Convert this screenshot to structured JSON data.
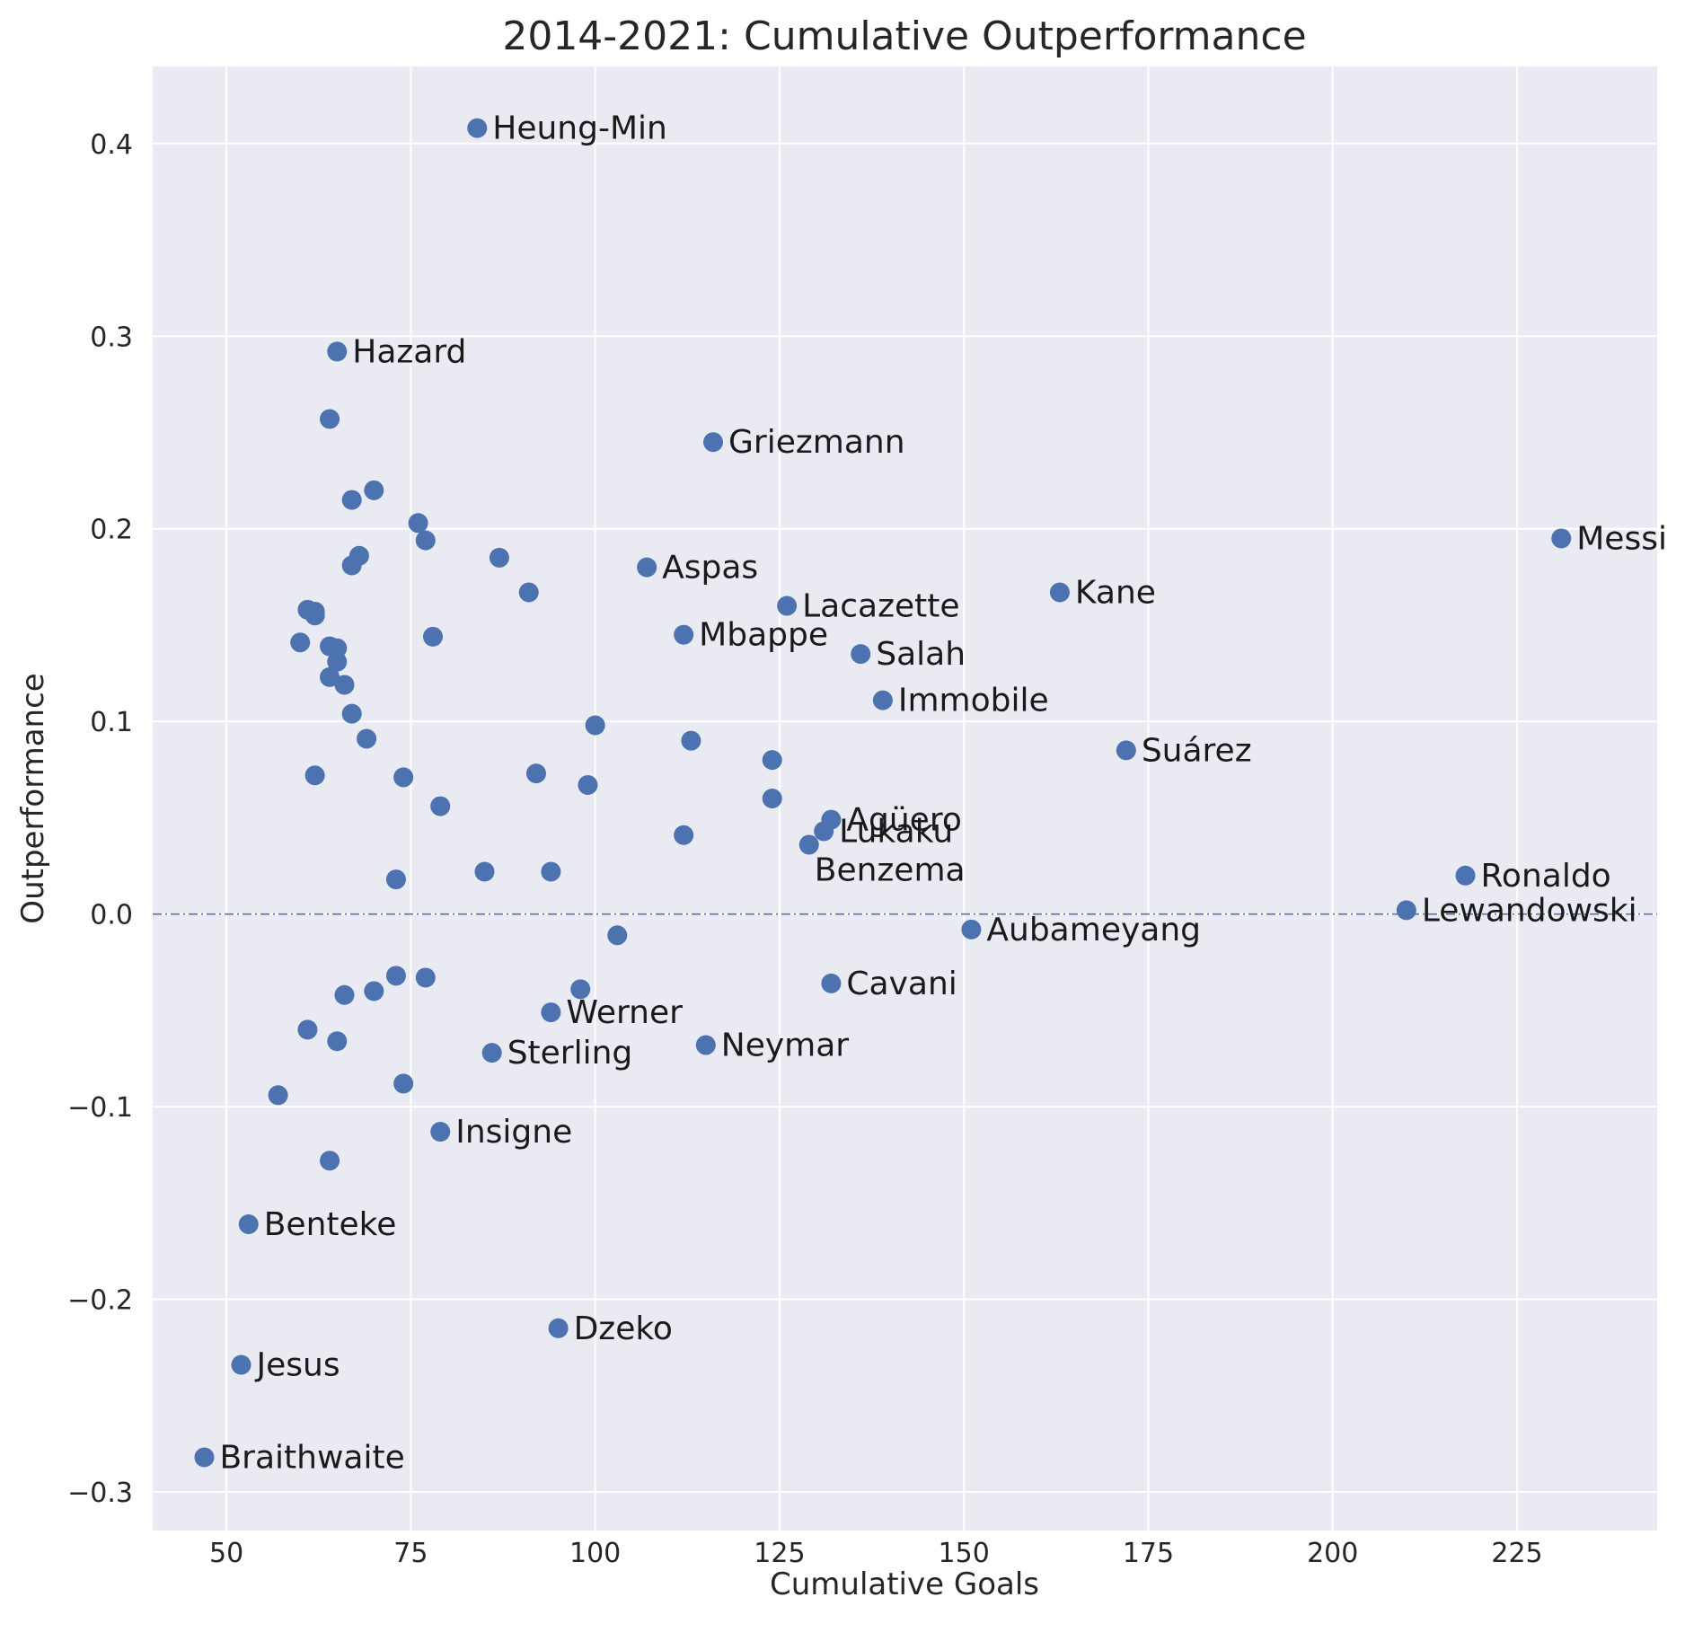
{
  "chart_data": {
    "type": "scatter",
    "title": "2014-2021: Cumulative Outperformance",
    "xlabel": "Cumulative Goals",
    "ylabel": "Outperformance",
    "xlim": [
      40,
      244
    ],
    "ylim": [
      -0.32,
      0.44
    ],
    "xticks": [
      50,
      75,
      100,
      125,
      150,
      175,
      200,
      225
    ],
    "yticks": [
      -0.3,
      -0.2,
      -0.1,
      0.0,
      0.1,
      0.2,
      0.3,
      0.4
    ],
    "xtick_labels": [
      "50",
      "75",
      "100",
      "125",
      "150",
      "175",
      "200",
      "225"
    ],
    "ytick_labels": [
      "−0.3",
      "−0.2",
      "−0.1",
      "0.0",
      "0.1",
      "0.2",
      "0.3",
      "0.4"
    ],
    "grid": true,
    "reference_line": {
      "y": 0,
      "style": "dash-dot"
    },
    "point_color": "#4c72b0",
    "background_color": "#eaeaf2",
    "points": [
      {
        "x": 84,
        "y": 0.408,
        "label": "Heung-Min"
      },
      {
        "x": 65,
        "y": 0.292,
        "label": "Hazard"
      },
      {
        "x": 64,
        "y": 0.257
      },
      {
        "x": 116,
        "y": 0.245,
        "label": "Griezmann"
      },
      {
        "x": 67,
        "y": 0.215
      },
      {
        "x": 70,
        "y": 0.22
      },
      {
        "x": 76,
        "y": 0.203
      },
      {
        "x": 77,
        "y": 0.194
      },
      {
        "x": 231,
        "y": 0.195,
        "label": "Messi"
      },
      {
        "x": 68,
        "y": 0.186
      },
      {
        "x": 67,
        "y": 0.181
      },
      {
        "x": 87,
        "y": 0.185
      },
      {
        "x": 107,
        "y": 0.18,
        "label": "Aspas"
      },
      {
        "x": 91,
        "y": 0.167
      },
      {
        "x": 163,
        "y": 0.167,
        "label": "Kane"
      },
      {
        "x": 126,
        "y": 0.16,
        "label": "Lacazette"
      },
      {
        "x": 61,
        "y": 0.158
      },
      {
        "x": 62,
        "y": 0.157
      },
      {
        "x": 62,
        "y": 0.155
      },
      {
        "x": 112,
        "y": 0.145,
        "label": "Mbappe"
      },
      {
        "x": 78,
        "y": 0.144
      },
      {
        "x": 60,
        "y": 0.141
      },
      {
        "x": 64,
        "y": 0.139
      },
      {
        "x": 65,
        "y": 0.138
      },
      {
        "x": 136,
        "y": 0.135,
        "label": "Salah"
      },
      {
        "x": 65,
        "y": 0.131
      },
      {
        "x": 64,
        "y": 0.123
      },
      {
        "x": 66,
        "y": 0.119
      },
      {
        "x": 139,
        "y": 0.111,
        "label": "Immobile"
      },
      {
        "x": 67,
        "y": 0.104
      },
      {
        "x": 100,
        "y": 0.098
      },
      {
        "x": 69,
        "y": 0.091
      },
      {
        "x": 113,
        "y": 0.09
      },
      {
        "x": 172,
        "y": 0.085,
        "label": "Suárez"
      },
      {
        "x": 124,
        "y": 0.08
      },
      {
        "x": 92,
        "y": 0.073
      },
      {
        "x": 62,
        "y": 0.072
      },
      {
        "x": 74,
        "y": 0.071
      },
      {
        "x": 99,
        "y": 0.067
      },
      {
        "x": 124,
        "y": 0.06
      },
      {
        "x": 79,
        "y": 0.056
      },
      {
        "x": 132,
        "y": 0.049,
        "label": "Agüero"
      },
      {
        "x": 131,
        "y": 0.043,
        "label": "Lukaku"
      },
      {
        "x": 112,
        "y": 0.041
      },
      {
        "x": 129,
        "y": 0.036,
        "label": "Benzema"
      },
      {
        "x": 85,
        "y": 0.022
      },
      {
        "x": 94,
        "y": 0.022
      },
      {
        "x": 218,
        "y": 0.02,
        "label": "Ronaldo"
      },
      {
        "x": 73,
        "y": 0.018
      },
      {
        "x": 210,
        "y": 0.002,
        "label": "Lewandowski"
      },
      {
        "x": 151,
        "y": -0.008,
        "label": "Aubameyang"
      },
      {
        "x": 103,
        "y": -0.011
      },
      {
        "x": 73,
        "y": -0.032
      },
      {
        "x": 77,
        "y": -0.033
      },
      {
        "x": 132,
        "y": -0.036,
        "label": "Cavani"
      },
      {
        "x": 98,
        "y": -0.039
      },
      {
        "x": 70,
        "y": -0.04
      },
      {
        "x": 66,
        "y": -0.042
      },
      {
        "x": 94,
        "y": -0.051,
        "label": "Werner"
      },
      {
        "x": 61,
        "y": -0.06
      },
      {
        "x": 65,
        "y": -0.066
      },
      {
        "x": 115,
        "y": -0.068,
        "label": "Neymar"
      },
      {
        "x": 86,
        "y": -0.072,
        "label": "Sterling"
      },
      {
        "x": 74,
        "y": -0.088
      },
      {
        "x": 57,
        "y": -0.094
      },
      {
        "x": 79,
        "y": -0.113,
        "label": "Insigne"
      },
      {
        "x": 64,
        "y": -0.128
      },
      {
        "x": 53,
        "y": -0.161,
        "label": "Benteke"
      },
      {
        "x": 95,
        "y": -0.215,
        "label": "Dzeko"
      },
      {
        "x": 52,
        "y": -0.234,
        "label": "Jesus"
      },
      {
        "x": 47,
        "y": -0.282,
        "label": "Braithwaite"
      }
    ]
  }
}
